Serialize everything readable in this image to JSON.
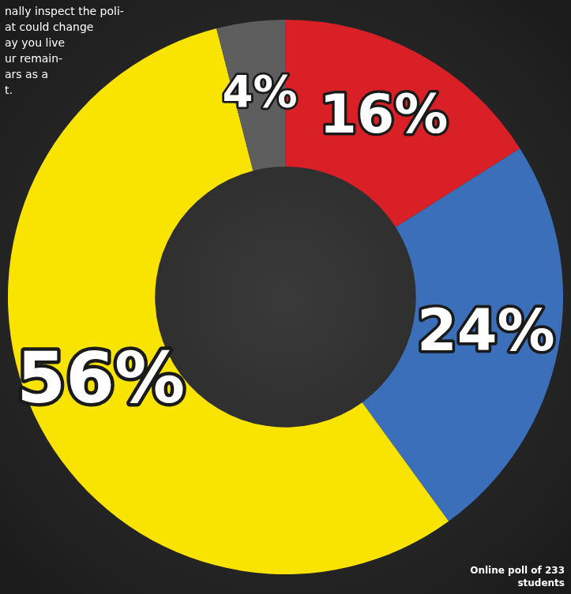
{
  "chart_data": {
    "type": "doughnut",
    "categories": [
      null,
      null,
      null,
      null
    ],
    "values": [
      16,
      24,
      56,
      4
    ],
    "value_labels": [
      "16%",
      "24%",
      "56%",
      "4%"
    ],
    "colors": [
      "#d92027",
      "#3b6fba",
      "#f9e300",
      "#5e5e5e"
    ],
    "data_labels": true,
    "annotations": [
      "nally inspect the poli-\nat could change\nay you live\nur remain-\nars as a\nt.",
      "Online poll of 233 students"
    ]
  }
}
